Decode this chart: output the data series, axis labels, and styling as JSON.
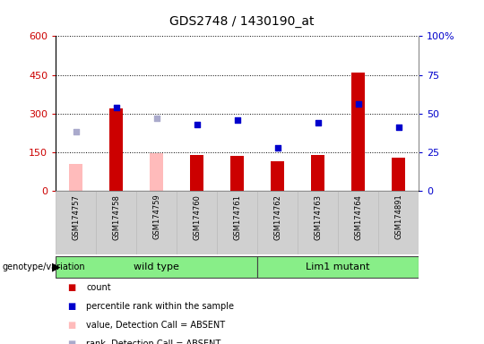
{
  "title": "GDS2748 / 1430190_at",
  "samples": [
    "GSM174757",
    "GSM174758",
    "GSM174759",
    "GSM174760",
    "GSM174761",
    "GSM174762",
    "GSM174763",
    "GSM174764",
    "GSM174891"
  ],
  "count_values": [
    null,
    320,
    null,
    138,
    135,
    115,
    140,
    460,
    128
  ],
  "count_absent_values": [
    105,
    null,
    145,
    null,
    null,
    null,
    null,
    null,
    null
  ],
  "rank_values_pct": [
    null,
    54,
    null,
    43,
    46,
    28,
    44,
    56,
    41
  ],
  "rank_absent_values_pct": [
    38,
    null,
    47,
    null,
    null,
    null,
    null,
    null,
    null
  ],
  "ylim_left": [
    0,
    600
  ],
  "ylim_right": [
    0,
    100
  ],
  "yticks_left": [
    0,
    150,
    300,
    450,
    600
  ],
  "ytick_labels_left": [
    "0",
    "150",
    "300",
    "450",
    "600"
  ],
  "yticks_right": [
    0,
    25,
    50,
    75,
    100
  ],
  "ytick_labels_right": [
    "0",
    "25",
    "50",
    "75",
    "100%"
  ],
  "bar_color_present": "#cc0000",
  "bar_color_absent": "#ffbbbb",
  "dot_color_present": "#0000cc",
  "dot_color_absent": "#aaaacc",
  "genotype_groups": [
    {
      "label": "wild type",
      "start": 0,
      "end": 5
    },
    {
      "label": "Lim1 mutant",
      "start": 5,
      "end": 9
    }
  ],
  "group_color": "#88ee88",
  "grid_color": "black",
  "legend_items": [
    {
      "color": "#cc0000",
      "label": "count"
    },
    {
      "color": "#0000cc",
      "label": "percentile rank within the sample"
    },
    {
      "color": "#ffbbbb",
      "label": "value, Detection Call = ABSENT"
    },
    {
      "color": "#aaaacc",
      "label": "rank, Detection Call = ABSENT"
    }
  ],
  "left_tick_color": "#cc0000",
  "right_tick_color": "#0000cc",
  "bar_width": 0.35,
  "chart_bg": "#ffffff",
  "fig_bg": "#ffffff"
}
